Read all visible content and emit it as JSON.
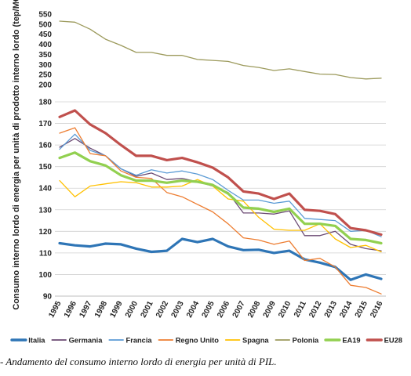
{
  "chart_data": {
    "type": "line",
    "ylabel": "Consumo interno lordo di energia per unità di prodotto interno lordo (tep/M€)",
    "caption": "- Andamento del consumo interno lordo di energia per unità di PIL.",
    "x": [
      "1995",
      "1996",
      "1997",
      "1998",
      "1999",
      "2000",
      "2001",
      "2002",
      "2003",
      "2004",
      "2005",
      "2006",
      "2007",
      "2008",
      "2009",
      "2010",
      "2011",
      "2012",
      "2013",
      "2014",
      "2015",
      "2016"
    ],
    "upper_panel": {
      "ylim": [
        200,
        550
      ],
      "ticks": [
        "550",
        "500",
        "450",
        "400",
        "350",
        "300",
        "250",
        "200"
      ],
      "tick_values": [
        550,
        500,
        450,
        400,
        350,
        300,
        250,
        200
      ],
      "grid": false
    },
    "lower_panel": {
      "ylim": [
        90,
        180
      ],
      "ticks": [
        "180",
        "170",
        "160",
        "150",
        "140",
        "130",
        "120",
        "110",
        "100",
        "90"
      ],
      "tick_values": [
        180,
        170,
        160,
        150,
        140,
        130,
        120,
        110,
        100,
        90
      ],
      "grid": true
    },
    "series": [
      {
        "name": "Italia",
        "color": "#2e75b6",
        "width": 3.2,
        "panel": "lower",
        "values": [
          114.5,
          113.5,
          113,
          114.3,
          114,
          112,
          110.5,
          111,
          116.5,
          115,
          116.5,
          113,
          111.3,
          111.5,
          110,
          111,
          107,
          105.5,
          103.5,
          97.5,
          100,
          98
        ]
      },
      {
        "name": "Germania",
        "color": "#6b4a73",
        "width": 1.3,
        "panel": "lower",
        "values": [
          159,
          163,
          158.5,
          155,
          149,
          145.5,
          147,
          144,
          144.5,
          143,
          141,
          138,
          128.5,
          128.5,
          128,
          129.5,
          118,
          118,
          120,
          114,
          112,
          111
        ]
      },
      {
        "name": "Francia",
        "color": "#5b9bd5",
        "width": 1.3,
        "panel": "lower",
        "values": [
          158,
          165,
          157.5,
          155,
          149,
          146,
          148.5,
          147,
          148,
          146.5,
          144,
          139,
          134.5,
          134.5,
          133,
          134,
          126,
          125.5,
          125,
          120,
          120.5,
          117.5
        ]
      },
      {
        "name": "Regno Unito",
        "color": "#ed7d31",
        "width": 1.3,
        "panel": "lower",
        "values": [
          165.5,
          168,
          156,
          155,
          148,
          145,
          144.5,
          138,
          136,
          132.5,
          129,
          123.5,
          117,
          116,
          114,
          115.5,
          106.5,
          107.5,
          103.5,
          95,
          94,
          91
        ]
      },
      {
        "name": "Spagna",
        "color": "#ffc000",
        "width": 1.3,
        "panel": "lower",
        "values": [
          143.5,
          136,
          141,
          142,
          143,
          142.5,
          140.5,
          140.5,
          141,
          144,
          141,
          135,
          134,
          126.5,
          121,
          120.5,
          120.5,
          123.5,
          116.5,
          112.5,
          113.5,
          110.5
        ]
      },
      {
        "name": "Polonia",
        "color": "#9c9a5c",
        "width": 1.3,
        "panel": "upper",
        "values": [
          515,
          510,
          475,
          425,
          395,
          360,
          360,
          345,
          345,
          325,
          320,
          315,
          295,
          285,
          270,
          278,
          265,
          252,
          250,
          235,
          228,
          232
        ]
      },
      {
        "name": "EA19",
        "color": "#92d050",
        "width": 3.2,
        "panel": "lower",
        "values": [
          154,
          156.5,
          152.5,
          150.5,
          146,
          143.5,
          143.5,
          142.5,
          143.5,
          143,
          141.5,
          137.5,
          131,
          130.5,
          129,
          130.5,
          123.5,
          123.5,
          122.5,
          116.5,
          116,
          114.5
        ]
      },
      {
        "name": "EU28",
        "color": "#c0504d",
        "width": 3.2,
        "panel": "lower",
        "values": [
          173,
          176,
          169.5,
          165.5,
          160,
          155,
          155,
          153,
          154,
          152,
          149.5,
          145,
          138.5,
          137.5,
          135,
          137.5,
          130,
          129.5,
          128,
          121.5,
          120.5,
          118.5
        ]
      }
    ],
    "legend_placement": "bottom"
  }
}
